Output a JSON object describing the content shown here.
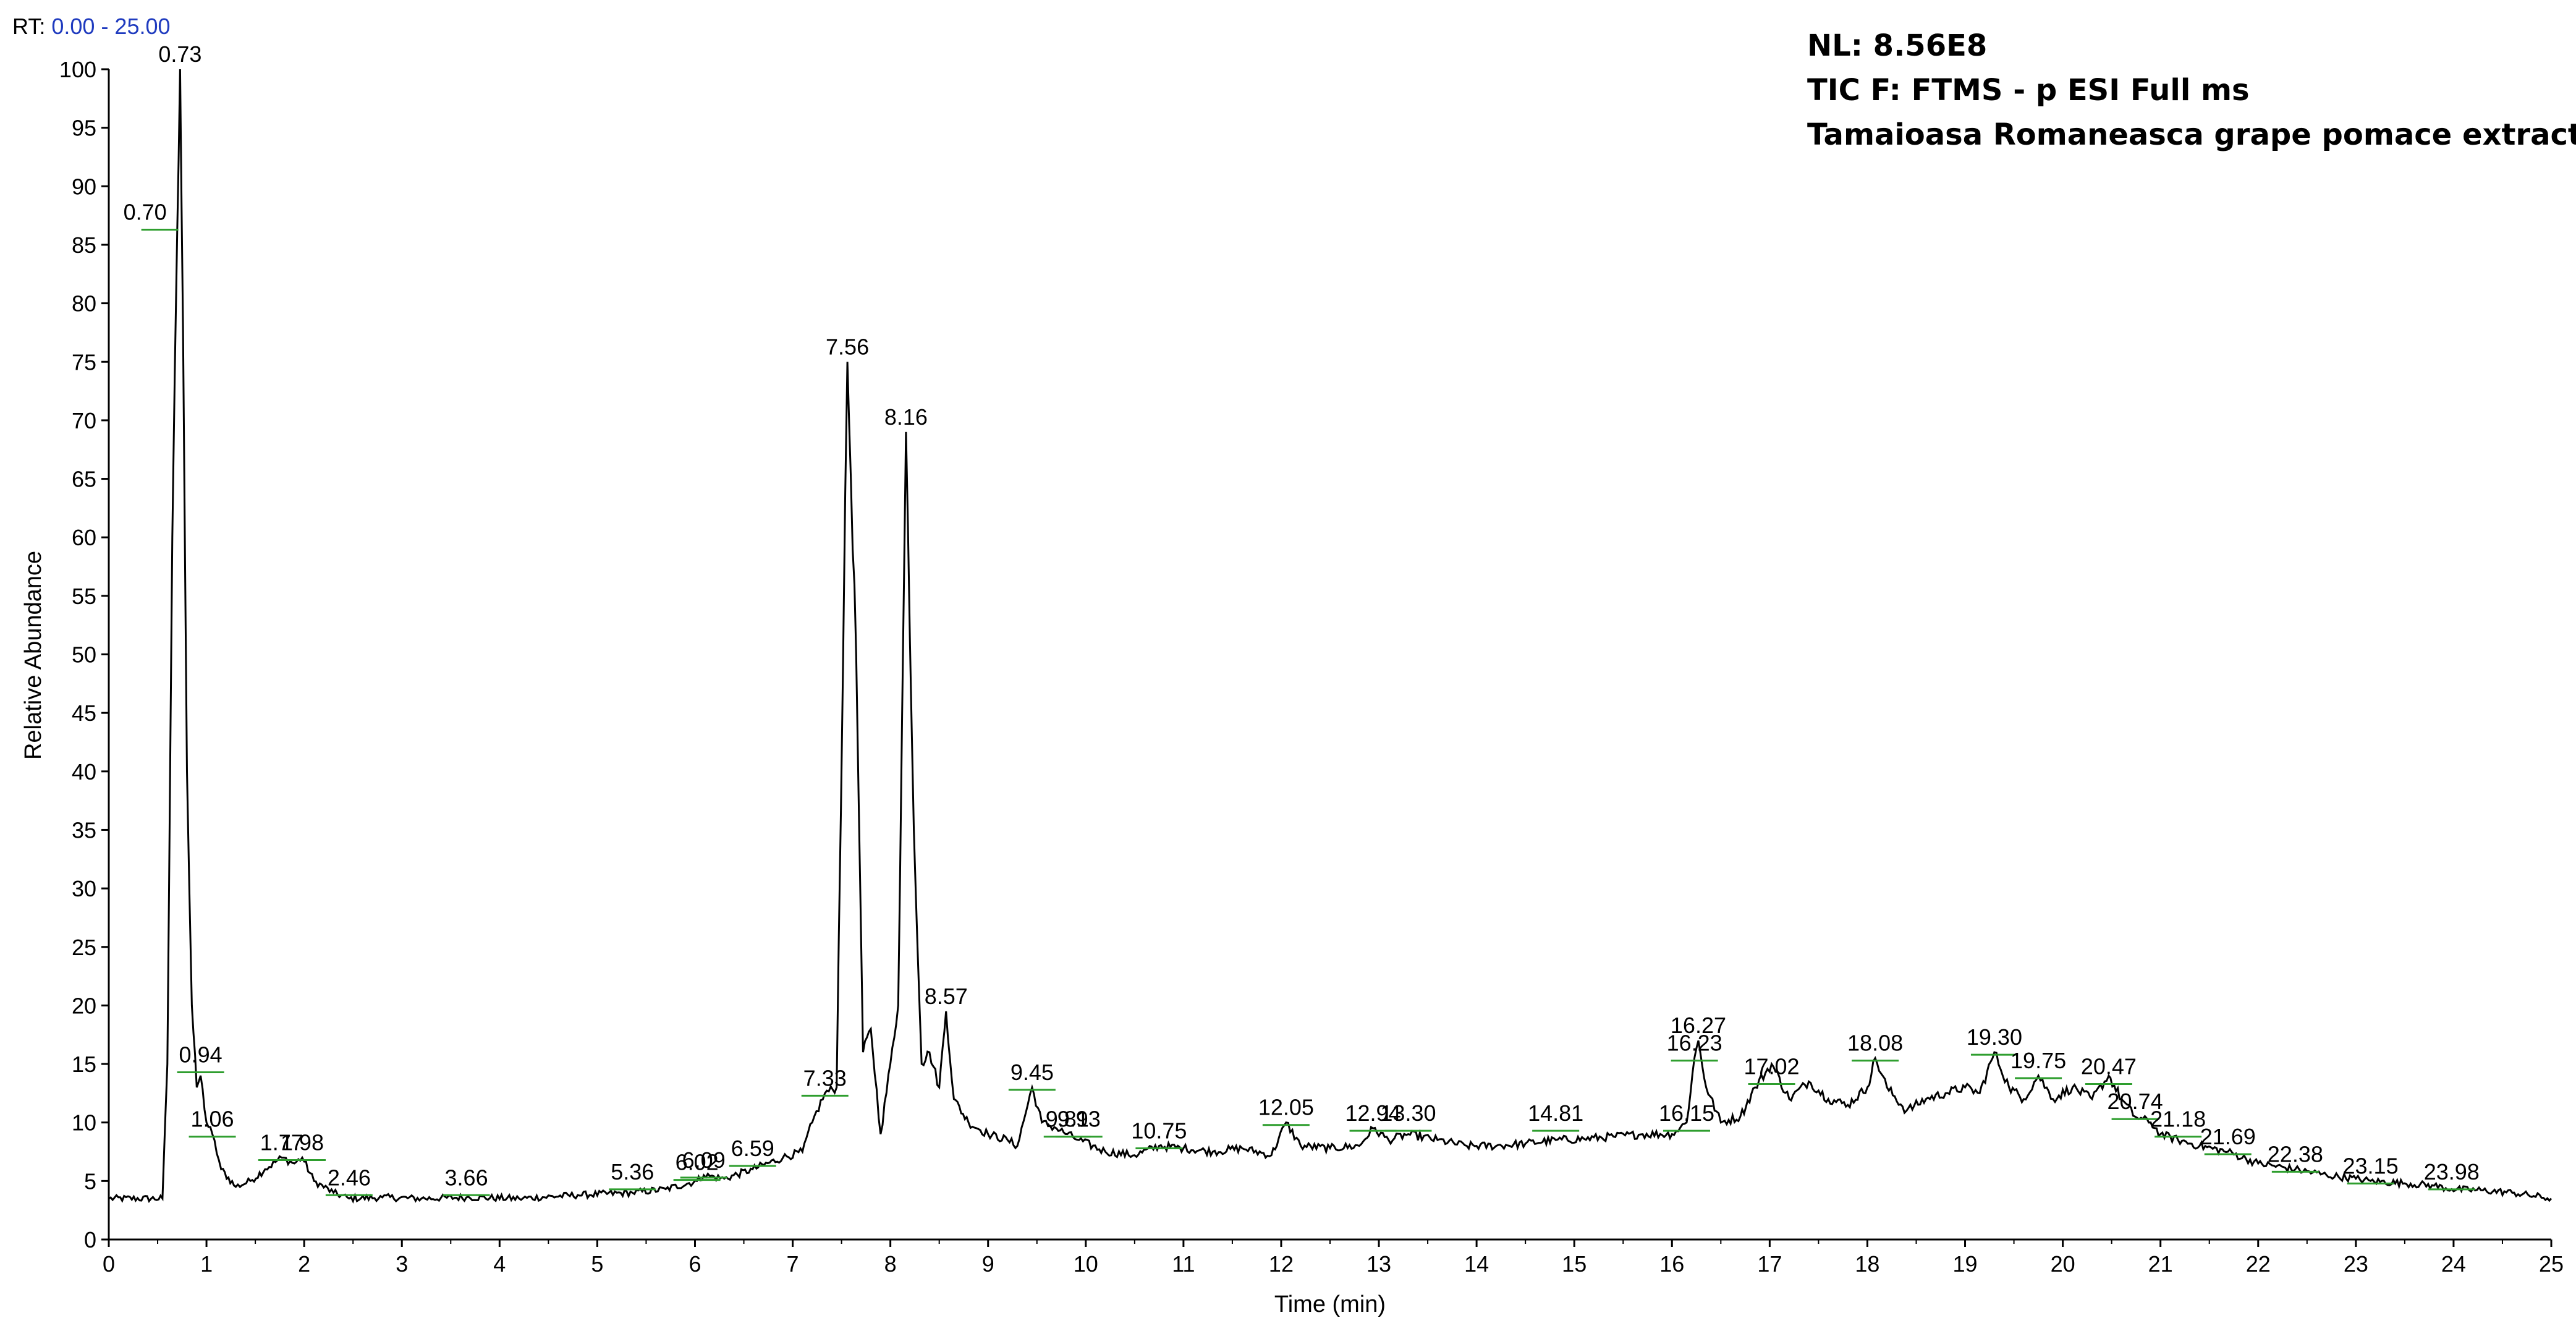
{
  "header": {
    "rt_prefix": "RT:",
    "rt_range": "0.00 - 25.00"
  },
  "info": {
    "nl": "NL: 8.56E8",
    "scan_filter": "TIC F: FTMS - p ESI Full ms",
    "sample": "Tamaioasa Romaneasca grape pomace extract"
  },
  "colors": {
    "trace": "#000000",
    "peak_marker": "#2e9e2e",
    "rt_range_text": "#1f3bbf"
  },
  "chart_data": {
    "type": "line",
    "title": "",
    "xlabel": "Time (min)",
    "ylabel": "Relative Abundance",
    "xlim": [
      0,
      25
    ],
    "ylim": [
      0,
      100
    ],
    "x_ticks": [
      0,
      1,
      2,
      3,
      4,
      5,
      6,
      7,
      8,
      9,
      10,
      11,
      12,
      13,
      14,
      15,
      16,
      17,
      18,
      19,
      20,
      21,
      22,
      23,
      24,
      25
    ],
    "y_ticks": [
      0,
      5,
      10,
      15,
      20,
      25,
      30,
      35,
      40,
      45,
      50,
      55,
      60,
      65,
      70,
      75,
      80,
      85,
      90,
      95,
      100
    ],
    "grid": false,
    "legend": "none",
    "series": [
      {
        "x": [
          0.0,
          0.55,
          0.6,
          0.65,
          0.7,
          0.73,
          0.76,
          0.8,
          0.85,
          0.9,
          0.94,
          1.0,
          1.06,
          1.15,
          1.3,
          1.45,
          1.6,
          1.77,
          1.9,
          1.98,
          2.1,
          2.3,
          2.46,
          2.8,
          3.2,
          3.66,
          4.2,
          4.8,
          5.36,
          5.7,
          6.02,
          6.09,
          6.3,
          6.59,
          6.9,
          7.1,
          7.2,
          7.33,
          7.45,
          7.56,
          7.65,
          7.72,
          7.8,
          7.9,
          8.0,
          8.08,
          8.16,
          8.24,
          8.32,
          8.4,
          8.5,
          8.57,
          8.65,
          8.8,
          9.0,
          9.2,
          9.3,
          9.45,
          9.55,
          9.7,
          9.81,
          9.93,
          10.2,
          10.5,
          10.75,
          11.0,
          11.3,
          11.6,
          11.9,
          12.05,
          12.2,
          12.5,
          12.8,
          12.94,
          13.1,
          13.3,
          13.6,
          13.9,
          14.2,
          14.5,
          14.81,
          15.1,
          15.4,
          15.7,
          16.0,
          16.15,
          16.23,
          16.27,
          16.35,
          16.5,
          16.7,
          16.85,
          17.02,
          17.2,
          17.4,
          17.6,
          17.8,
          18.0,
          18.08,
          18.2,
          18.4,
          18.6,
          18.8,
          19.0,
          19.15,
          19.3,
          19.45,
          19.6,
          19.75,
          19.9,
          20.1,
          20.3,
          20.47,
          20.6,
          20.74,
          20.9,
          21.0,
          21.18,
          21.4,
          21.69,
          22.0,
          22.38,
          22.7,
          23.0,
          23.15,
          23.5,
          23.8,
          23.98,
          24.3,
          24.6,
          25.0
        ],
        "y": [
          3.5,
          3.5,
          15,
          60,
          86,
          100,
          78,
          40,
          20,
          13,
          14,
          10,
          9,
          6,
          4.5,
          5,
          6,
          7,
          6.5,
          7,
          5,
          4,
          3.5,
          3.6,
          3.5,
          3.6,
          3.5,
          3.8,
          4,
          4.3,
          5,
          5.5,
          5.2,
          6,
          7,
          7.5,
          10,
          12.5,
          13,
          75,
          50,
          16,
          18,
          9,
          15,
          20,
          69,
          35,
          15,
          16,
          13,
          19.5,
          12,
          10,
          9,
          8.5,
          8,
          13,
          10,
          9.5,
          9,
          8.5,
          7.5,
          7.2,
          8,
          7.8,
          7.5,
          7.8,
          7.2,
          10,
          8,
          7.8,
          8,
          9.5,
          8.5,
          9,
          8.5,
          8,
          8,
          8.2,
          8.5,
          8.6,
          8.8,
          9,
          9,
          10,
          15.5,
          17,
          13,
          10,
          10.5,
          13,
          15,
          12,
          13.5,
          12,
          11.5,
          13,
          15.5,
          13,
          11,
          12,
          12.5,
          13,
          12.5,
          16,
          13,
          12,
          14,
          12,
          13,
          12,
          14,
          12,
          10.5,
          10,
          9,
          8.5,
          8,
          7.5,
          6.5,
          6,
          5.5,
          5.2,
          5,
          4.8,
          4.6,
          4.3,
          4.2,
          4,
          3.5
        ]
      }
    ],
    "peak_labels": [
      {
        "rt": 0.73,
        "y": 100
      },
      {
        "rt": 0.7,
        "y": 86.5
      },
      {
        "rt": 0.94,
        "y": 14.5
      },
      {
        "rt": 1.06,
        "y": 9
      },
      {
        "rt": 1.77,
        "y": 7
      },
      {
        "rt": 1.98,
        "y": 7
      },
      {
        "rt": 2.46,
        "y": 4
      },
      {
        "rt": 3.66,
        "y": 4
      },
      {
        "rt": 5.36,
        "y": 4.5
      },
      {
        "rt": 6.02,
        "y": 5.3
      },
      {
        "rt": 6.09,
        "y": 5.5
      },
      {
        "rt": 6.59,
        "y": 6.5
      },
      {
        "rt": 7.33,
        "y": 12.5
      },
      {
        "rt": 7.56,
        "y": 75
      },
      {
        "rt": 8.16,
        "y": 69
      },
      {
        "rt": 8.57,
        "y": 19.5
      },
      {
        "rt": 9.45,
        "y": 13
      },
      {
        "rt": 9.81,
        "y": 9
      },
      {
        "rt": 9.93,
        "y": 9
      },
      {
        "rt": 10.75,
        "y": 8
      },
      {
        "rt": 12.05,
        "y": 10
      },
      {
        "rt": 12.94,
        "y": 9.5
      },
      {
        "rt": 13.3,
        "y": 9.5
      },
      {
        "rt": 14.81,
        "y": 9.5
      },
      {
        "rt": 16.15,
        "y": 9.5
      },
      {
        "rt": 16.23,
        "y": 15.5
      },
      {
        "rt": 16.27,
        "y": 17
      },
      {
        "rt": 17.02,
        "y": 13.5
      },
      {
        "rt": 18.08,
        "y": 15.5
      },
      {
        "rt": 19.3,
        "y": 16
      },
      {
        "rt": 19.75,
        "y": 14
      },
      {
        "rt": 20.47,
        "y": 13.5
      },
      {
        "rt": 20.74,
        "y": 10.5
      },
      {
        "rt": 21.18,
        "y": 9
      },
      {
        "rt": 21.69,
        "y": 7.5
      },
      {
        "rt": 22.38,
        "y": 6
      },
      {
        "rt": 23.15,
        "y": 5
      },
      {
        "rt": 23.98,
        "y": 4.5
      }
    ]
  }
}
